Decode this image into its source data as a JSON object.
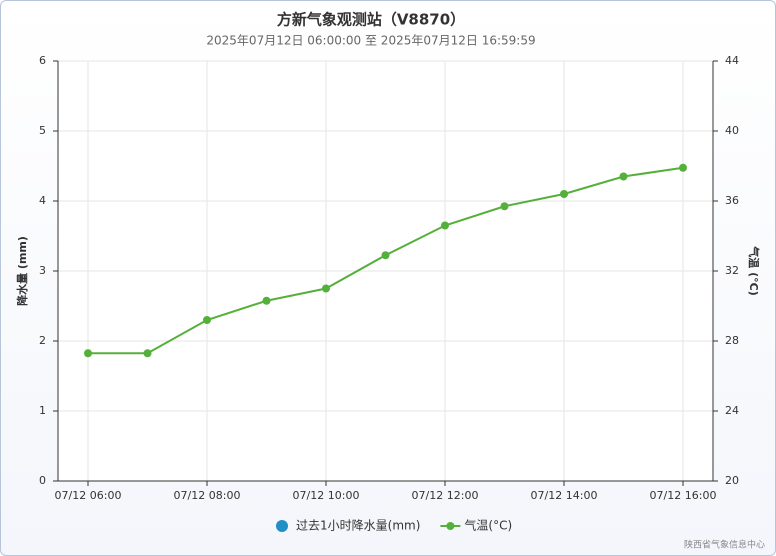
{
  "chart_data": {
    "type": "line",
    "title": "方新气象观测站（V8870）",
    "subtitle": "2025年07月12日 06:00:00 至 2025年07月12日 16:59:59",
    "y_label": "降水量 (mm)",
    "y2_label": "气温 (°C)",
    "credit": "陕西省气象信息中心",
    "categories": [
      "07/12 06:00",
      null,
      "07/12 08:00",
      null,
      "07/12 10:00",
      null,
      "07/12 12:00",
      null,
      "07/12 14:00",
      null,
      "07/12 16:00"
    ],
    "series": [
      {
        "name": "过去1小时降水量(mm)",
        "color": "#1f8fc5",
        "type": "bar",
        "values": [
          null,
          null,
          null,
          null,
          null,
          null,
          null,
          null,
          null,
          null,
          null
        ]
      },
      {
        "name": "气温(°C)",
        "color": "#55b03b",
        "type": "line",
        "axis": "y2",
        "values": [
          27.3,
          27.3,
          29.2,
          30.3,
          31.0,
          32.9,
          34.6,
          35.7,
          36.4,
          37.4,
          37.9
        ]
      }
    ],
    "ylim": [
      0,
      6
    ],
    "yticks": [
      0,
      1,
      2,
      3,
      4,
      5,
      6
    ],
    "y2lim": [
      20,
      44
    ],
    "y2ticks": [
      20,
      24,
      28,
      32,
      36,
      40,
      44
    ],
    "grid": true,
    "legend": "bottom"
  }
}
